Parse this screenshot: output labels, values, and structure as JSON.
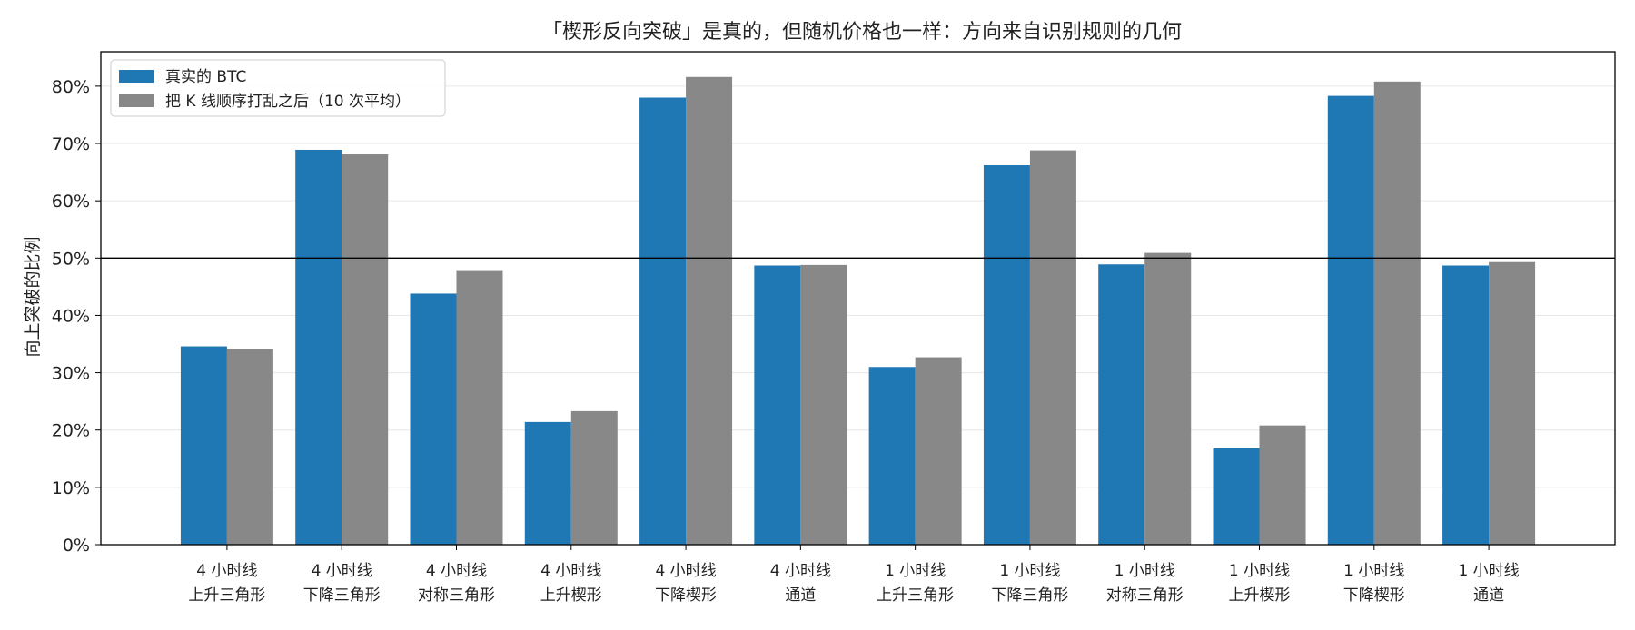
{
  "chart_data": {
    "type": "bar",
    "title": "「楔形反向突破」是真的，但随机价格也一样：方向来自识别规则的几何",
    "xlabel": "",
    "ylabel": "向上突破的比例",
    "ylim": [
      0,
      0.86
    ],
    "yticks": [
      0,
      0.1,
      0.2,
      0.3,
      0.4,
      0.5,
      0.6,
      0.7,
      0.8
    ],
    "ytick_labels": [
      "0%",
      "10%",
      "20%",
      "30%",
      "40%",
      "50%",
      "60%",
      "70%",
      "80%"
    ],
    "reference_line": 0.5,
    "grid": "horizontal",
    "legend_position": "top-left",
    "categories": [
      [
        "4 小时线",
        "上升三角形"
      ],
      [
        "4 小时线",
        "下降三角形"
      ],
      [
        "4 小时线",
        "对称三角形"
      ],
      [
        "4 小时线",
        "上升楔形"
      ],
      [
        "4 小时线",
        "下降楔形"
      ],
      [
        "4 小时线",
        "通道"
      ],
      [
        "1 小时线",
        "上升三角形"
      ],
      [
        "1 小时线",
        "下降三角形"
      ],
      [
        "1 小时线",
        "对称三角形"
      ],
      [
        "1 小时线",
        "上升楔形"
      ],
      [
        "1 小时线",
        "下降楔形"
      ],
      [
        "1 小时线",
        "通道"
      ]
    ],
    "series": [
      {
        "name": "真实的 BTC",
        "color": "#1f77b4",
        "values": [
          0.346,
          0.689,
          0.438,
          0.214,
          0.78,
          0.487,
          0.31,
          0.662,
          0.489,
          0.168,
          0.783,
          0.487
        ]
      },
      {
        "name": "把 K 线顺序打乱之后（10 次平均）",
        "color": "#888888",
        "values": [
          0.342,
          0.681,
          0.479,
          0.233,
          0.816,
          0.488,
          0.327,
          0.688,
          0.509,
          0.208,
          0.808,
          0.493
        ]
      }
    ]
  }
}
